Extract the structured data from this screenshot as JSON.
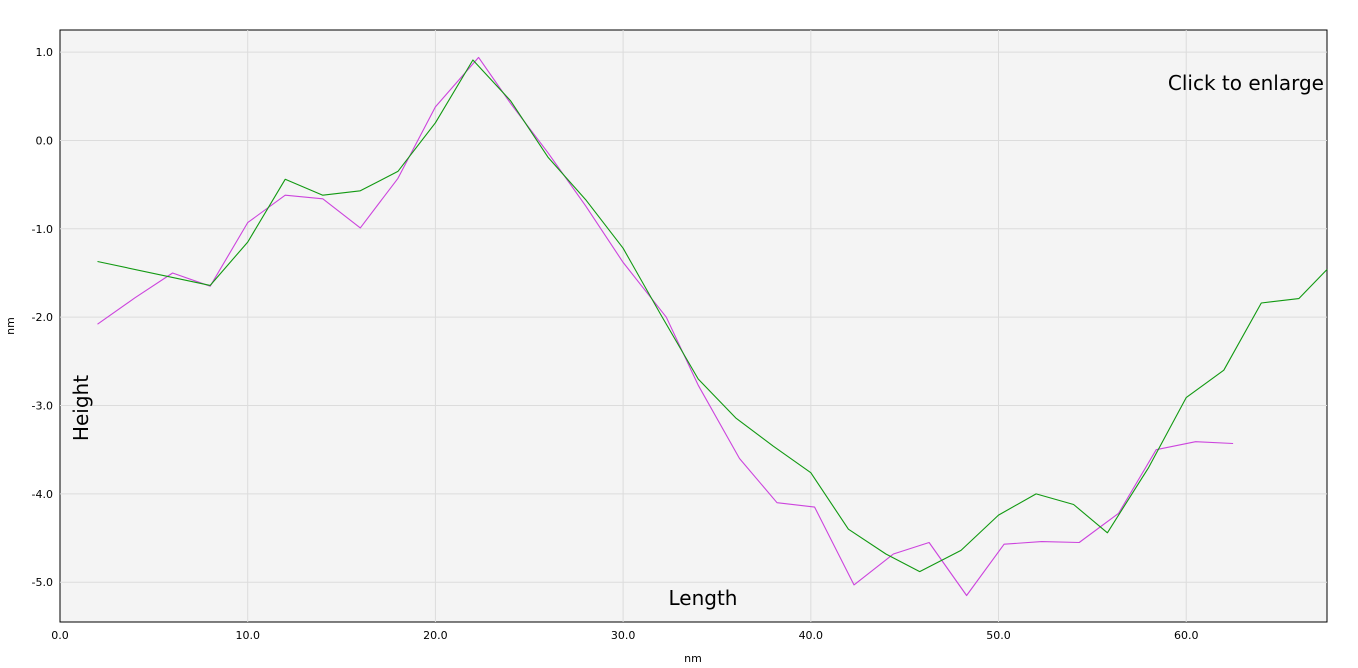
{
  "chart_data": {
    "type": "line",
    "x_unit_label": "nm",
    "y_unit_label": "nm",
    "overlay_height": "Height",
    "overlay_length": "Length",
    "overlay_enlarge": "Click to enlarge",
    "xlim": [
      0,
      67.5
    ],
    "ylim": [
      -5.45,
      1.25
    ],
    "x_ticks": [
      0,
      10,
      20,
      30,
      40,
      50,
      60
    ],
    "x_tick_labels": [
      "0.0",
      "10.0",
      "20.0",
      "30.0",
      "40.0",
      "50.0",
      "60.0"
    ],
    "y_ticks": [
      1,
      0,
      -1,
      -2,
      -3,
      -4,
      -5
    ],
    "y_tick_labels": [
      "1.0",
      "0.0",
      "-1.0",
      "-2.0",
      "-3.0",
      "-4.0",
      "-5.0"
    ],
    "grid": true,
    "colors": {
      "plot_bg": "#f4f4f4",
      "grid": "#dcdcdc",
      "series_1": "#cc44dd",
      "series_2": "#119911"
    },
    "series": [
      {
        "color": "#cc44dd",
        "x": [
          2.0,
          4.0,
          6.0,
          8.0,
          10.0,
          12.0,
          14.0,
          16.0,
          18.0,
          20.0,
          22.3,
          24.0,
          26.0,
          28.0,
          30.0,
          32.3,
          34.0,
          36.2,
          38.2,
          40.2,
          42.3,
          44.4,
          46.3,
          48.3,
          50.3,
          52.3,
          54.3,
          56.4,
          58.4,
          60.5,
          62.5
        ],
        "y": [
          -2.08,
          -1.78,
          -1.5,
          -1.65,
          -0.93,
          -0.62,
          -0.66,
          -0.99,
          -0.43,
          0.38,
          0.94,
          0.42,
          -0.14,
          -0.74,
          -1.38,
          -2.0,
          -2.77,
          -3.6,
          -4.1,
          -4.15,
          -5.03,
          -4.68,
          -4.55,
          -5.15,
          -4.57,
          -4.54,
          -4.55,
          -4.22,
          -3.5,
          -3.41,
          -3.43
        ]
      },
      {
        "color": "#119911",
        "x": [
          2.0,
          8.0,
          10.0,
          12.0,
          14.0,
          16.0,
          18.0,
          20.0,
          22.0,
          24.0,
          26.0,
          28.0,
          30.0,
          32.0,
          34.0,
          36.0,
          38.0,
          40.0,
          42.0,
          44.0,
          45.8,
          48.0,
          50.0,
          52.0,
          54.0,
          55.8,
          58.0,
          60.0,
          62.0,
          64.0,
          66.0,
          67.5
        ],
        "y": [
          -1.37,
          -1.64,
          -1.15,
          -0.44,
          -0.62,
          -0.57,
          -0.35,
          0.2,
          0.91,
          0.45,
          -0.19,
          -0.67,
          -1.22,
          -1.97,
          -2.7,
          -3.14,
          -3.46,
          -3.76,
          -4.4,
          -4.68,
          -4.88,
          -4.64,
          -4.24,
          -4.0,
          -4.12,
          -4.44,
          -3.7,
          -2.91,
          -2.6,
          -1.84,
          -1.79,
          -1.46
        ]
      }
    ]
  }
}
